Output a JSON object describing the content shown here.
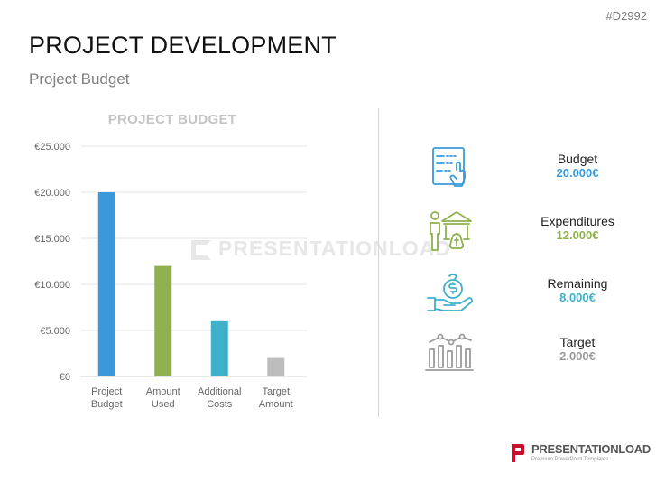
{
  "slide_id": "#D2992",
  "title": "PROJECT DEVELOPMENT",
  "subtitle": "Project Budget",
  "watermark": "PRESENTATIONLOAD",
  "chart_data": {
    "type": "bar",
    "title": "PROJECT BUDGET",
    "categories": [
      [
        "Project",
        "Budget"
      ],
      [
        "Amount",
        "Used"
      ],
      [
        "Additional",
        "Costs"
      ],
      [
        "Target",
        "Amount"
      ]
    ],
    "values": [
      20000,
      12000,
      6000,
      2000
    ],
    "bar_colors": [
      "#3a9ad9",
      "#8fb04e",
      "#3fb0c9",
      "#bdbdbd"
    ],
    "ylim": [
      0,
      25000
    ],
    "yticks": [
      0,
      5000,
      10000,
      15000,
      20000,
      25000
    ],
    "ytick_labels": [
      "€0",
      "€5.000",
      "€10.000",
      "€15.000",
      "€20.000",
      "€25.000"
    ],
    "grid": true,
    "legend": "none"
  },
  "kpis": [
    {
      "icon": "budget-document-icon",
      "label": "Budget",
      "value": "20.000€",
      "color": "#3a9ad9"
    },
    {
      "icon": "expenditures-bank-icon",
      "label": "Expenditures",
      "value": "12.000€",
      "color": "#8fb04e"
    },
    {
      "icon": "remaining-money-hand-icon",
      "label": "Remaining",
      "value": "8.000€",
      "color": "#3fb0c9"
    },
    {
      "icon": "target-chart-icon",
      "label": "Target",
      "value": "2.000€",
      "color": "#9a9a9a"
    }
  ],
  "brand": {
    "name": "PRESENTATIONLOAD",
    "tagline": "Premium PowerPoint Templates",
    "accent": "#c8102e"
  }
}
